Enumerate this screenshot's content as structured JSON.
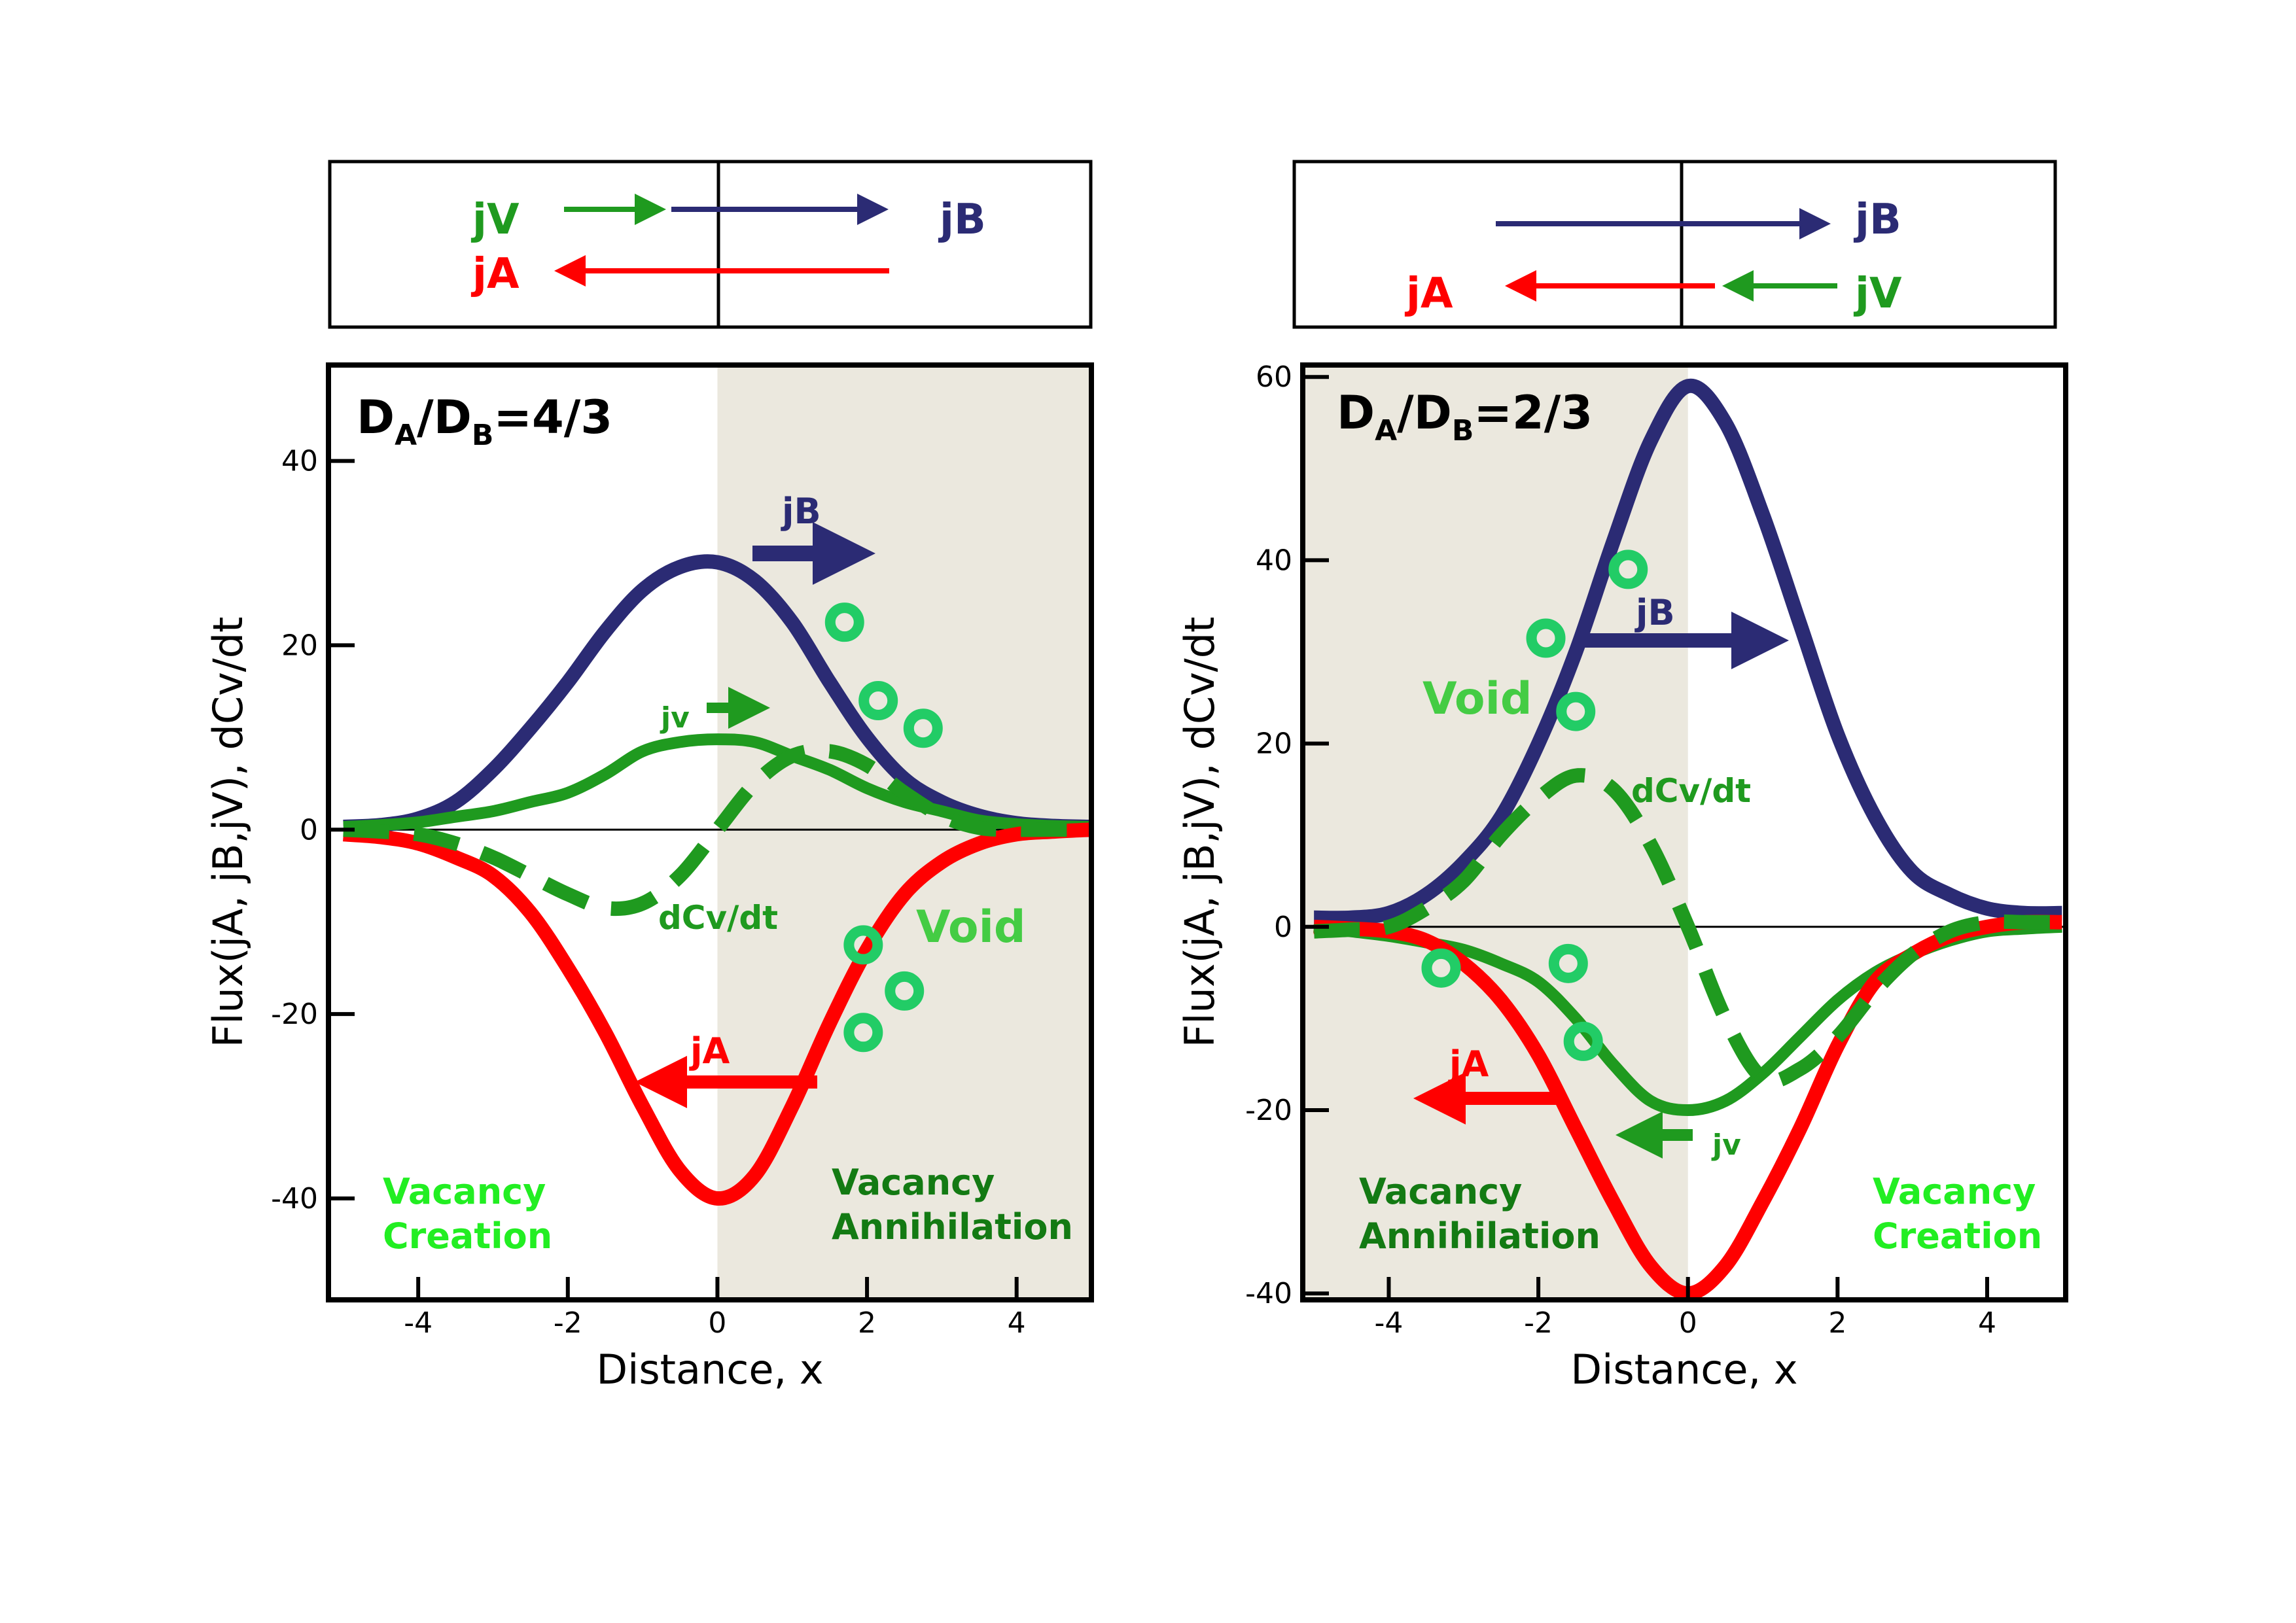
{
  "colors": {
    "jB": "#2b2b74",
    "jA": "#ff0000",
    "jV": "#1f9a1f",
    "dCv": "#1f9a1f",
    "void": "#22cc66",
    "void_text": "#44cc44",
    "creation": "#22ee22",
    "annihilation": "#137a13",
    "shade": "#ebe8de"
  },
  "chart_data": [
    {
      "type": "line",
      "title_parts": [
        "D",
        "A",
        "/D",
        "B",
        "=4/3"
      ],
      "xlabel": "Distance, x",
      "ylabel": "Flux(jA, jB,jV), dCv/dt",
      "xlim": [
        -5.2,
        5.0
      ],
      "ylim": [
        -51,
        50.4
      ],
      "xticks": [
        -4,
        -2,
        0,
        2,
        4
      ],
      "yticks": [
        40,
        20,
        0,
        -20,
        -40
      ],
      "shaded_region": [
        0,
        5.0
      ],
      "x": [
        -5,
        -4.5,
        -4,
        -3.5,
        -3,
        -2.5,
        -2,
        -1.5,
        -1,
        -0.5,
        0,
        0.5,
        1,
        1.5,
        2,
        2.5,
        3,
        3.5,
        4,
        4.5,
        5
      ],
      "series": [
        {
          "name": "jB",
          "style": "solid",
          "values": [
            0.3,
            0.5,
            1.2,
            3,
            6.5,
            11,
            16,
            21.5,
            26,
            28.5,
            29,
            27,
            22.5,
            16,
            10,
            5.5,
            3,
            1.5,
            0.7,
            0.4,
            0.3
          ]
        },
        {
          "name": "jV",
          "style": "solid",
          "values": [
            0.3,
            0.5,
            0.8,
            1.4,
            2,
            3,
            4,
            6,
            8.5,
            9.5,
            9.8,
            9.5,
            8,
            6.5,
            4.5,
            3,
            2,
            1,
            0.6,
            0.4,
            0.3
          ]
        },
        {
          "name": "jA",
          "style": "solid",
          "values": [
            -0.5,
            -0.8,
            -1.5,
            -3,
            -5,
            -9,
            -15,
            -22,
            -30,
            -37,
            -40,
            -37.5,
            -30,
            -21,
            -13,
            -7,
            -3.5,
            -1.5,
            -0.5,
            -0.2,
            0
          ]
        },
        {
          "name": "dCv/dt",
          "style": "dashed",
          "values": [
            0,
            -0.2,
            -0.5,
            -1.5,
            -3,
            -5,
            -7,
            -8.5,
            -8,
            -5,
            0,
            5,
            8,
            8.5,
            7,
            4,
            1.5,
            0.2,
            0,
            0,
            0
          ]
        }
      ],
      "void_markers": [
        [
          1.7,
          22.5
        ],
        [
          2.15,
          14
        ],
        [
          2.75,
          11
        ],
        [
          1.95,
          -12.5
        ],
        [
          2.5,
          -17.5
        ],
        [
          1.95,
          -22
        ]
      ],
      "annotations": {
        "jB": "jB",
        "jV": "jv",
        "dCv": "dCv/dt",
        "void": "Void",
        "jA": "jA",
        "left_region": [
          "Vacancy",
          "Creation"
        ],
        "right_region": [
          "Vacancy",
          "Annihilation"
        ]
      },
      "schematic": {
        "jV": "jV",
        "jB": "jB",
        "jA": "jA"
      }
    },
    {
      "type": "line",
      "title_parts": [
        "D",
        "A",
        "/D",
        "B",
        "=2/3"
      ],
      "xlabel": "Distance, x",
      "ylabel": "Flux(jA, jB,jV), dCv/dt",
      "xlim": [
        -5.15,
        5.05
      ],
      "ylim": [
        -40.7,
        61.3
      ],
      "xticks": [
        -4,
        -2,
        0,
        2,
        4
      ],
      "yticks": [
        60,
        40,
        20,
        0,
        -20,
        -40
      ],
      "shaded_region": [
        -5.15,
        0
      ],
      "x": [
        -5,
        -4.5,
        -4,
        -3.5,
        -3,
        -2.5,
        -2,
        -1.5,
        -1,
        -0.5,
        0,
        0.5,
        1,
        1.5,
        2,
        2.5,
        3,
        3.5,
        4,
        4.5,
        5
      ],
      "series": [
        {
          "name": "jB",
          "style": "solid",
          "values": [
            1,
            1,
            1.5,
            3.5,
            7,
            12,
            20,
            30,
            42,
            53,
            59,
            55,
            45,
            33,
            21,
            12,
            6,
            3.5,
            2,
            1.5,
            1.5
          ]
        },
        {
          "name": "jV",
          "style": "solid",
          "values": [
            0,
            -0.5,
            -1,
            -1.7,
            -2.5,
            -4,
            -6,
            -10,
            -15,
            -19,
            -20,
            -19,
            -16,
            -12,
            -8,
            -5,
            -3,
            -1.5,
            -0.5,
            -0.2,
            0
          ]
        },
        {
          "name": "jA",
          "style": "solid",
          "values": [
            0,
            -0.2,
            -0.5,
            -1.5,
            -4,
            -8,
            -14,
            -22,
            -30,
            -37,
            -40,
            -37,
            -30,
            -22,
            -13,
            -6,
            -3,
            -1,
            0,
            0.5,
            0.5
          ]
        },
        {
          "name": "dCv/dt",
          "style": "dashed",
          "values": [
            -0.5,
            -0.3,
            0,
            2,
            5,
            10,
            14,
            16.5,
            15,
            9,
            0,
            -10,
            -16.5,
            -15.5,
            -12,
            -7,
            -3,
            -0.5,
            0.5,
            0.5,
            0.5
          ]
        }
      ],
      "void_markers": [
        [
          -0.8,
          39
        ],
        [
          -1.9,
          31.5
        ],
        [
          -1.5,
          23.5
        ],
        [
          -3.3,
          -4.5
        ],
        [
          -1.6,
          -4
        ],
        [
          -1.4,
          -12.5
        ]
      ],
      "annotations": {
        "jB": "jB",
        "jV": "jv",
        "dCv": "dCv/dt",
        "void": "Void",
        "jA": "jA",
        "left_region": [
          "Vacancy",
          "Annihilation"
        ],
        "right_region": [
          "Vacancy",
          "Creation"
        ]
      },
      "schematic": {
        "jV": "jV",
        "jB": "jB",
        "jA": "jA"
      }
    }
  ]
}
